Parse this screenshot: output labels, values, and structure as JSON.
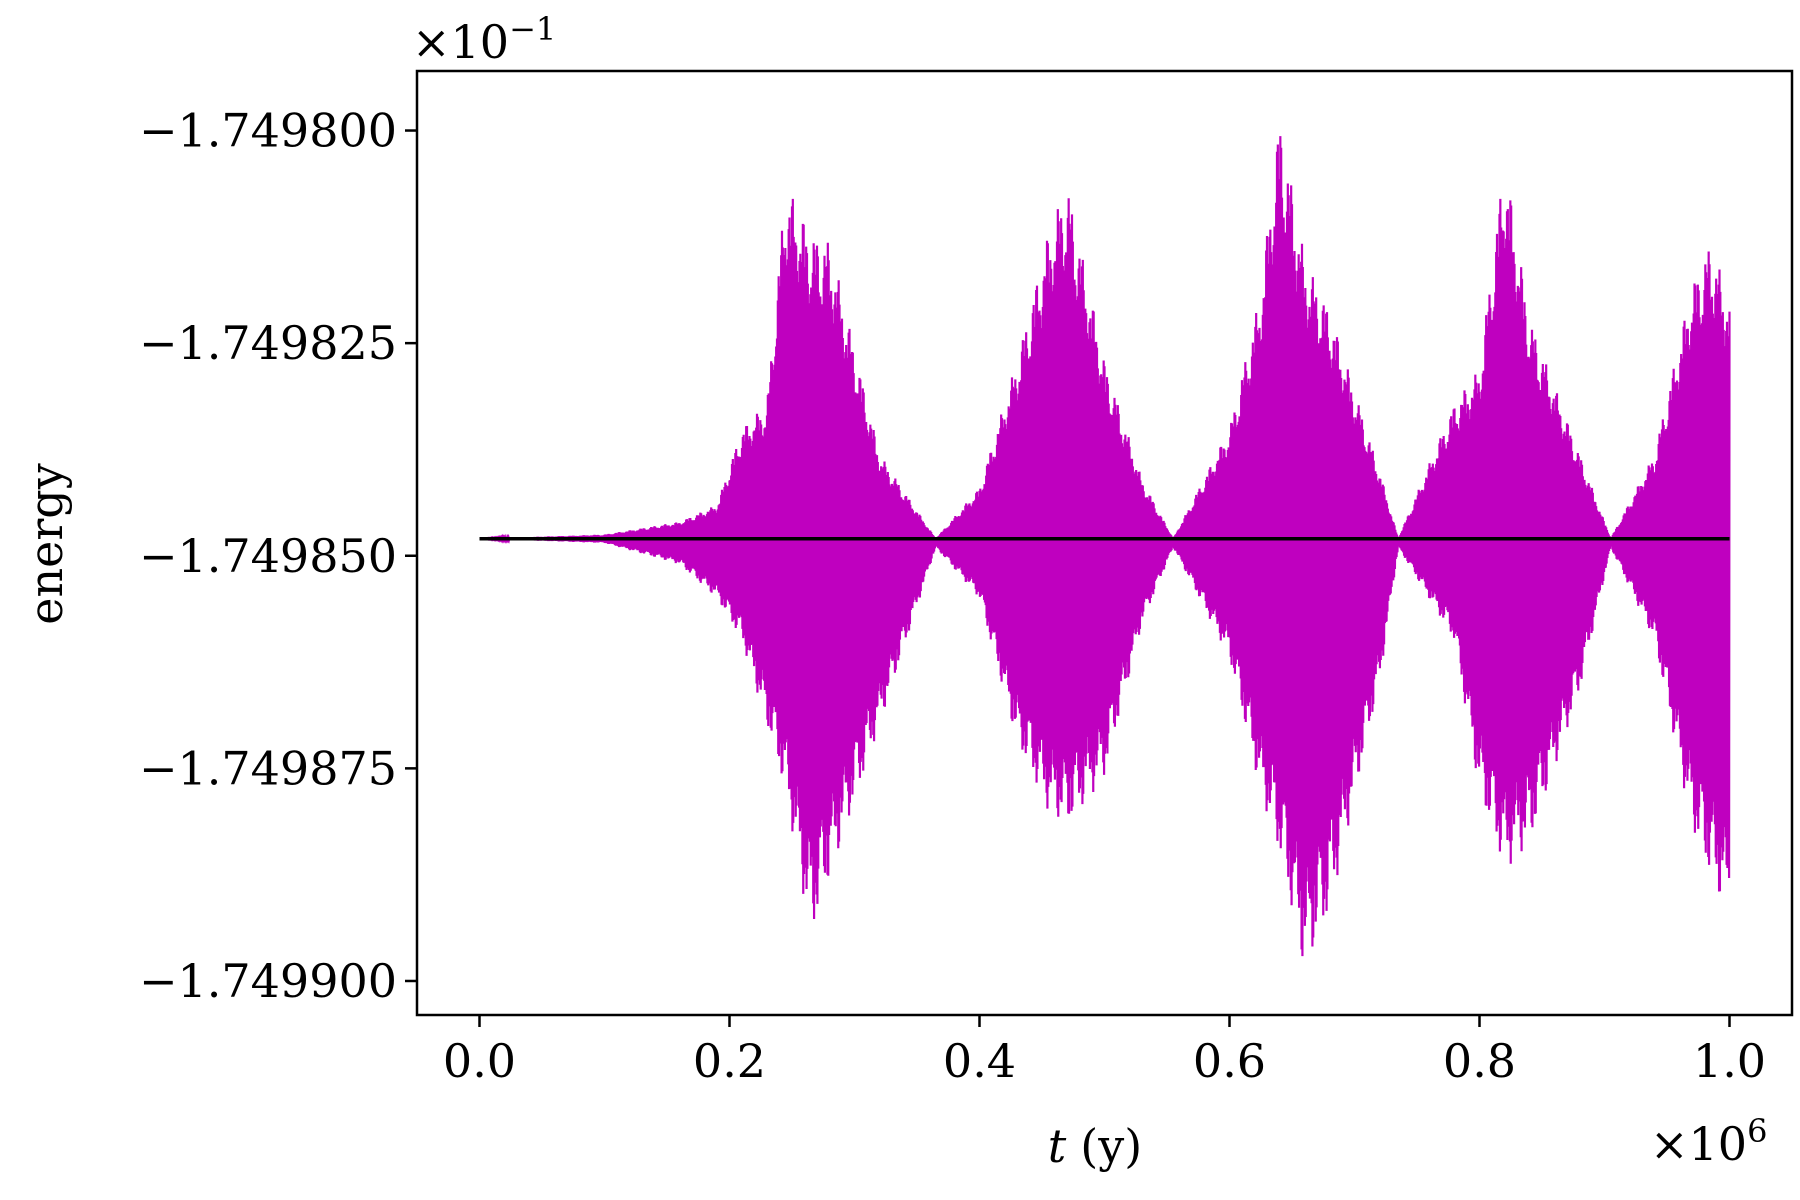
{
  "chart_data": {
    "type": "line",
    "xlabel": "t (y)",
    "xlabel_var": "t",
    "xlabel_unit": "(y)",
    "ylabel": "energy",
    "x_multiplier": "×10",
    "x_multiplier_exp": "6",
    "y_multiplier": "×10",
    "y_multiplier_exp": "−1",
    "xlim": [
      -0.05,
      1.05
    ],
    "ylim": [
      -1.749904,
      -1.749793
    ],
    "x_ticks": [
      0.0,
      0.2,
      0.4,
      0.6,
      0.8,
      1.0
    ],
    "x_tick_labels": [
      "0.0",
      "0.2",
      "0.4",
      "0.6",
      "0.8",
      "1.0"
    ],
    "y_ticks": [
      -1.7498,
      -1.749825,
      -1.74985,
      -1.749875,
      -1.7499
    ],
    "y_tick_labels": [
      "−1.749800",
      "−1.749825",
      "−1.749850",
      "−1.749875",
      "−1.749900"
    ],
    "grid": false,
    "series": [
      {
        "color": "#bf00bf",
        "style": "oscillating band",
        "center": -1.749848,
        "envelope": [
          {
            "x": 0.0,
            "upper": -1.749848,
            "lower": -1.749848
          },
          {
            "x": 0.1,
            "upper": -1.7498475,
            "lower": -1.7498485
          },
          {
            "x": 0.16,
            "upper": -1.749846,
            "lower": -1.749851
          },
          {
            "x": 0.19,
            "upper": -1.749844,
            "lower": -1.749855
          },
          {
            "x": 0.21,
            "upper": -1.749835,
            "lower": -1.74986
          },
          {
            "x": 0.23,
            "upper": -1.749832,
            "lower": -1.74987
          },
          {
            "x": 0.245,
            "upper": -1.749806,
            "lower": -1.749878
          },
          {
            "x": 0.265,
            "upper": -1.749812,
            "lower": -1.749895
          },
          {
            "x": 0.28,
            "upper": -1.749813,
            "lower": -1.749888
          },
          {
            "x": 0.32,
            "upper": -1.749838,
            "lower": -1.74987
          },
          {
            "x": 0.365,
            "upper": -1.749848,
            "lower": -1.749849
          },
          {
            "x": 0.4,
            "upper": -1.749842,
            "lower": -1.749855
          },
          {
            "x": 0.43,
            "upper": -1.749827,
            "lower": -1.749872
          },
          {
            "x": 0.455,
            "upper": -1.749812,
            "lower": -1.74988
          },
          {
            "x": 0.47,
            "upper": -1.749806,
            "lower": -1.749882
          },
          {
            "x": 0.5,
            "upper": -1.749827,
            "lower": -1.749876
          },
          {
            "x": 0.53,
            "upper": -1.749841,
            "lower": -1.749858
          },
          {
            "x": 0.555,
            "upper": -1.749848,
            "lower": -1.749849
          },
          {
            "x": 0.6,
            "upper": -1.749835,
            "lower": -1.749862
          },
          {
            "x": 0.625,
            "upper": -1.749819,
            "lower": -1.749878
          },
          {
            "x": 0.64,
            "upper": -1.749798,
            "lower": -1.749885
          },
          {
            "x": 0.66,
            "upper": -1.749815,
            "lower": -1.749899
          },
          {
            "x": 0.68,
            "upper": -1.749821,
            "lower": -1.749892
          },
          {
            "x": 0.72,
            "upper": -1.74984,
            "lower": -1.749865
          },
          {
            "x": 0.735,
            "upper": -1.749848,
            "lower": -1.749849
          },
          {
            "x": 0.78,
            "upper": -1.749832,
            "lower": -1.74986
          },
          {
            "x": 0.8,
            "upper": -1.749828,
            "lower": -1.749878
          },
          {
            "x": 0.82,
            "upper": -1.749803,
            "lower": -1.749887
          },
          {
            "x": 0.84,
            "upper": -1.749822,
            "lower": -1.749884
          },
          {
            "x": 0.88,
            "upper": -1.749838,
            "lower": -1.749866
          },
          {
            "x": 0.905,
            "upper": -1.749848,
            "lower": -1.749849
          },
          {
            "x": 0.94,
            "upper": -1.749838,
            "lower": -1.74986
          },
          {
            "x": 0.97,
            "upper": -1.749818,
            "lower": -1.749882
          },
          {
            "x": 0.985,
            "upper": -1.749813,
            "lower": -1.749888
          },
          {
            "x": 1.0,
            "upper": -1.74982,
            "lower": -1.749893
          }
        ]
      },
      {
        "color": "#000000",
        "style": "constant line",
        "x": [
          0.0,
          1.0
        ],
        "values": [
          -1.749848,
          -1.749848
        ]
      }
    ]
  }
}
